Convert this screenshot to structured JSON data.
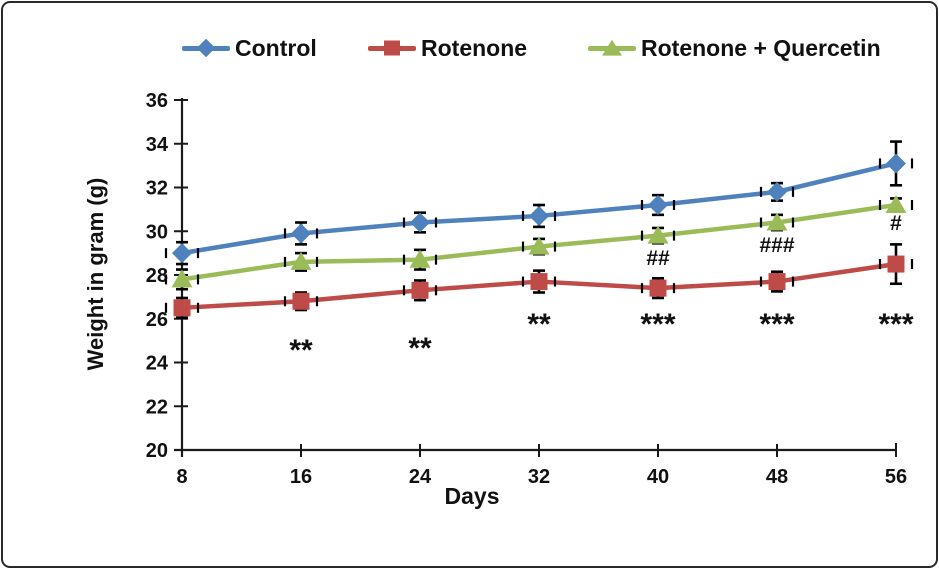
{
  "chart_data": {
    "type": "line",
    "title": "",
    "xlabel": "Days",
    "ylabel": "Weight in gram (g)",
    "x": [
      8,
      16,
      24,
      32,
      40,
      48,
      56
    ],
    "ylim": [
      20,
      36
    ],
    "ytick_step": 2,
    "grid": false,
    "legend_position": "top",
    "axis_color": "#1a1a1a",
    "text_color": "#111111",
    "series": [
      {
        "name": "Control",
        "color": "#4F81BD",
        "marker": "diamond",
        "values": [
          29.0,
          29.9,
          30.4,
          30.7,
          31.2,
          31.8,
          33.1
        ],
        "errors": [
          0.5,
          0.5,
          0.45,
          0.5,
          0.45,
          0.4,
          1.0
        ]
      },
      {
        "name": "Rotenone",
        "color": "#BE4B48",
        "marker": "square",
        "values": [
          26.5,
          26.8,
          27.3,
          27.7,
          27.4,
          27.7,
          28.5
        ],
        "errors": [
          0.45,
          0.4,
          0.45,
          0.5,
          0.45,
          0.45,
          0.9
        ]
      },
      {
        "name": "Rotenone + Quercetin",
        "color": "#9BBB59",
        "marker": "triangle",
        "values": [
          27.8,
          28.6,
          28.7,
          29.3,
          29.8,
          30.4,
          31.2
        ],
        "errors": [
          0.45,
          0.4,
          0.45,
          0.35,
          0.35,
          0.35,
          0.3
        ]
      }
    ],
    "annotations": [
      {
        "text": "**",
        "x": 16,
        "y": 25.1
      },
      {
        "text": "**",
        "x": 24,
        "y": 25.2
      },
      {
        "text": "**",
        "x": 32,
        "y": 26.3
      },
      {
        "text": "***",
        "x": 40,
        "y": 26.3
      },
      {
        "text": "***",
        "x": 48,
        "y": 26.3
      },
      {
        "text": "***",
        "x": 56,
        "y": 26.3
      },
      {
        "text": "##",
        "x": 40,
        "y": 28.8
      },
      {
        "text": "###",
        "x": 48,
        "y": 29.4
      },
      {
        "text": "#",
        "x": 56,
        "y": 30.4
      }
    ]
  }
}
